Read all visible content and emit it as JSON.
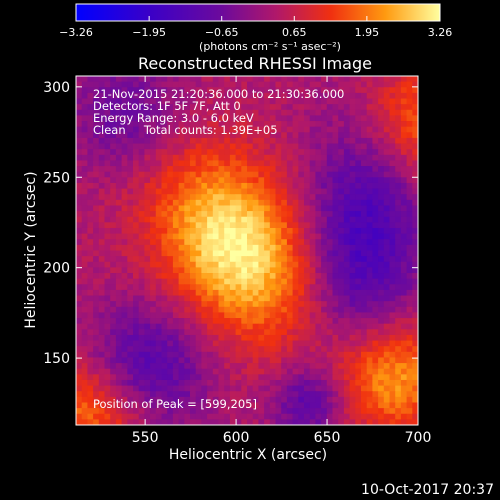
{
  "chart_data": {
    "type": "heatmap",
    "title": "Reconstructed RHESSI Image",
    "xlabel": "Heliocentric X (arcsec)",
    "ylabel": "Heliocentric Y (arcsec)",
    "xlim": [
      512,
      700
    ],
    "ylim": [
      113,
      306
    ],
    "x_ticks": [
      550,
      600,
      650,
      700
    ],
    "y_ticks": [
      150,
      200,
      250,
      300
    ],
    "x_tick_labels": [
      "550",
      "600",
      "650",
      "700"
    ],
    "y_tick_labels": [
      "150",
      "200",
      "250",
      "300"
    ],
    "grid": false,
    "colormap": "rhessi-blue-purple-red-yellow",
    "colorbar": {
      "min": -3.26,
      "max": 3.26,
      "ticks": [
        -3.26,
        -1.95,
        -0.65,
        0.65,
        1.95,
        3.26
      ],
      "tick_labels": [
        "−3.26",
        "−1.95",
        "−0.65",
        "0.65",
        "1.95",
        "3.26"
      ],
      "units": "(photons cm⁻² s⁻¹ asec⁻²)"
    },
    "sources": [
      {
        "x": 599,
        "y": 205,
        "peak": 3.26
      },
      {
        "x": 685,
        "y": 140,
        "peak": 2.2
      },
      {
        "x": 520,
        "y": 120,
        "peak": 1.7
      },
      {
        "x": 700,
        "y": 282,
        "peak": 1.5
      }
    ],
    "annotations": {
      "time_range": "21-Nov-2015 21:20:36.000 to 21:30:36.000",
      "detectors": "Detectors: 1F 5F 7F, Att 0",
      "energy": "Energy Range: 3.0 - 6.0 keV",
      "clean": "Clean     Total counts: 1.39E+05",
      "peak": "Position of Peak = [599,205]"
    },
    "footer_timestamp": "10-Oct-2017 20:37"
  }
}
